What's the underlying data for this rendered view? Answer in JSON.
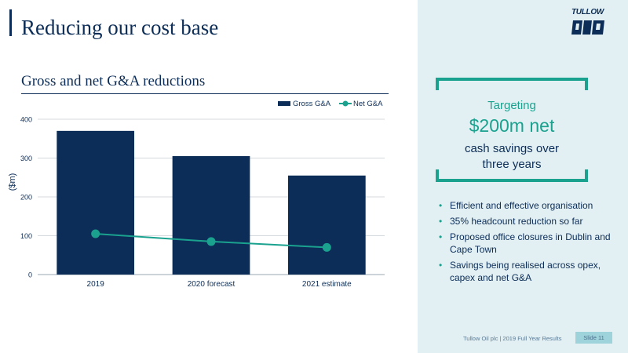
{
  "slide": {
    "title": "Reducing our cost base",
    "footer": "Tullow Oil plc | 2019 Full Year Results",
    "slide_number": "Slide 11",
    "logo_text": "TULLOW"
  },
  "chart_data": {
    "type": "bar",
    "title": "Gross and net G&A reductions",
    "categories": [
      "2019",
      "2020 forecast",
      "2021 estimate"
    ],
    "ylabel": "($m)",
    "ylim": [
      0,
      400
    ],
    "yticks": [
      "0",
      "100",
      "200",
      "300",
      "400"
    ],
    "grid": true,
    "legend_position": "top-right",
    "series": [
      {
        "name": "Gross G&A",
        "kind": "bar",
        "color": "#0c2d57",
        "values": [
          370,
          305,
          255
        ]
      },
      {
        "name": "Net G&A",
        "kind": "line",
        "color": "#1aa28f",
        "values": [
          105,
          85,
          70
        ]
      }
    ]
  },
  "panel": {
    "target_label": "Targeting",
    "target_value": "$200m net",
    "target_desc": "cash savings over three years",
    "bullets": [
      "Efficient and effective organisation",
      "35% headcount reduction so far",
      "Proposed office closures in Dublin and Cape Town",
      "Savings being realised across opex, capex and net G&A"
    ],
    "accent_color": "#1aa28f",
    "background_color": "#e2f0f4"
  }
}
